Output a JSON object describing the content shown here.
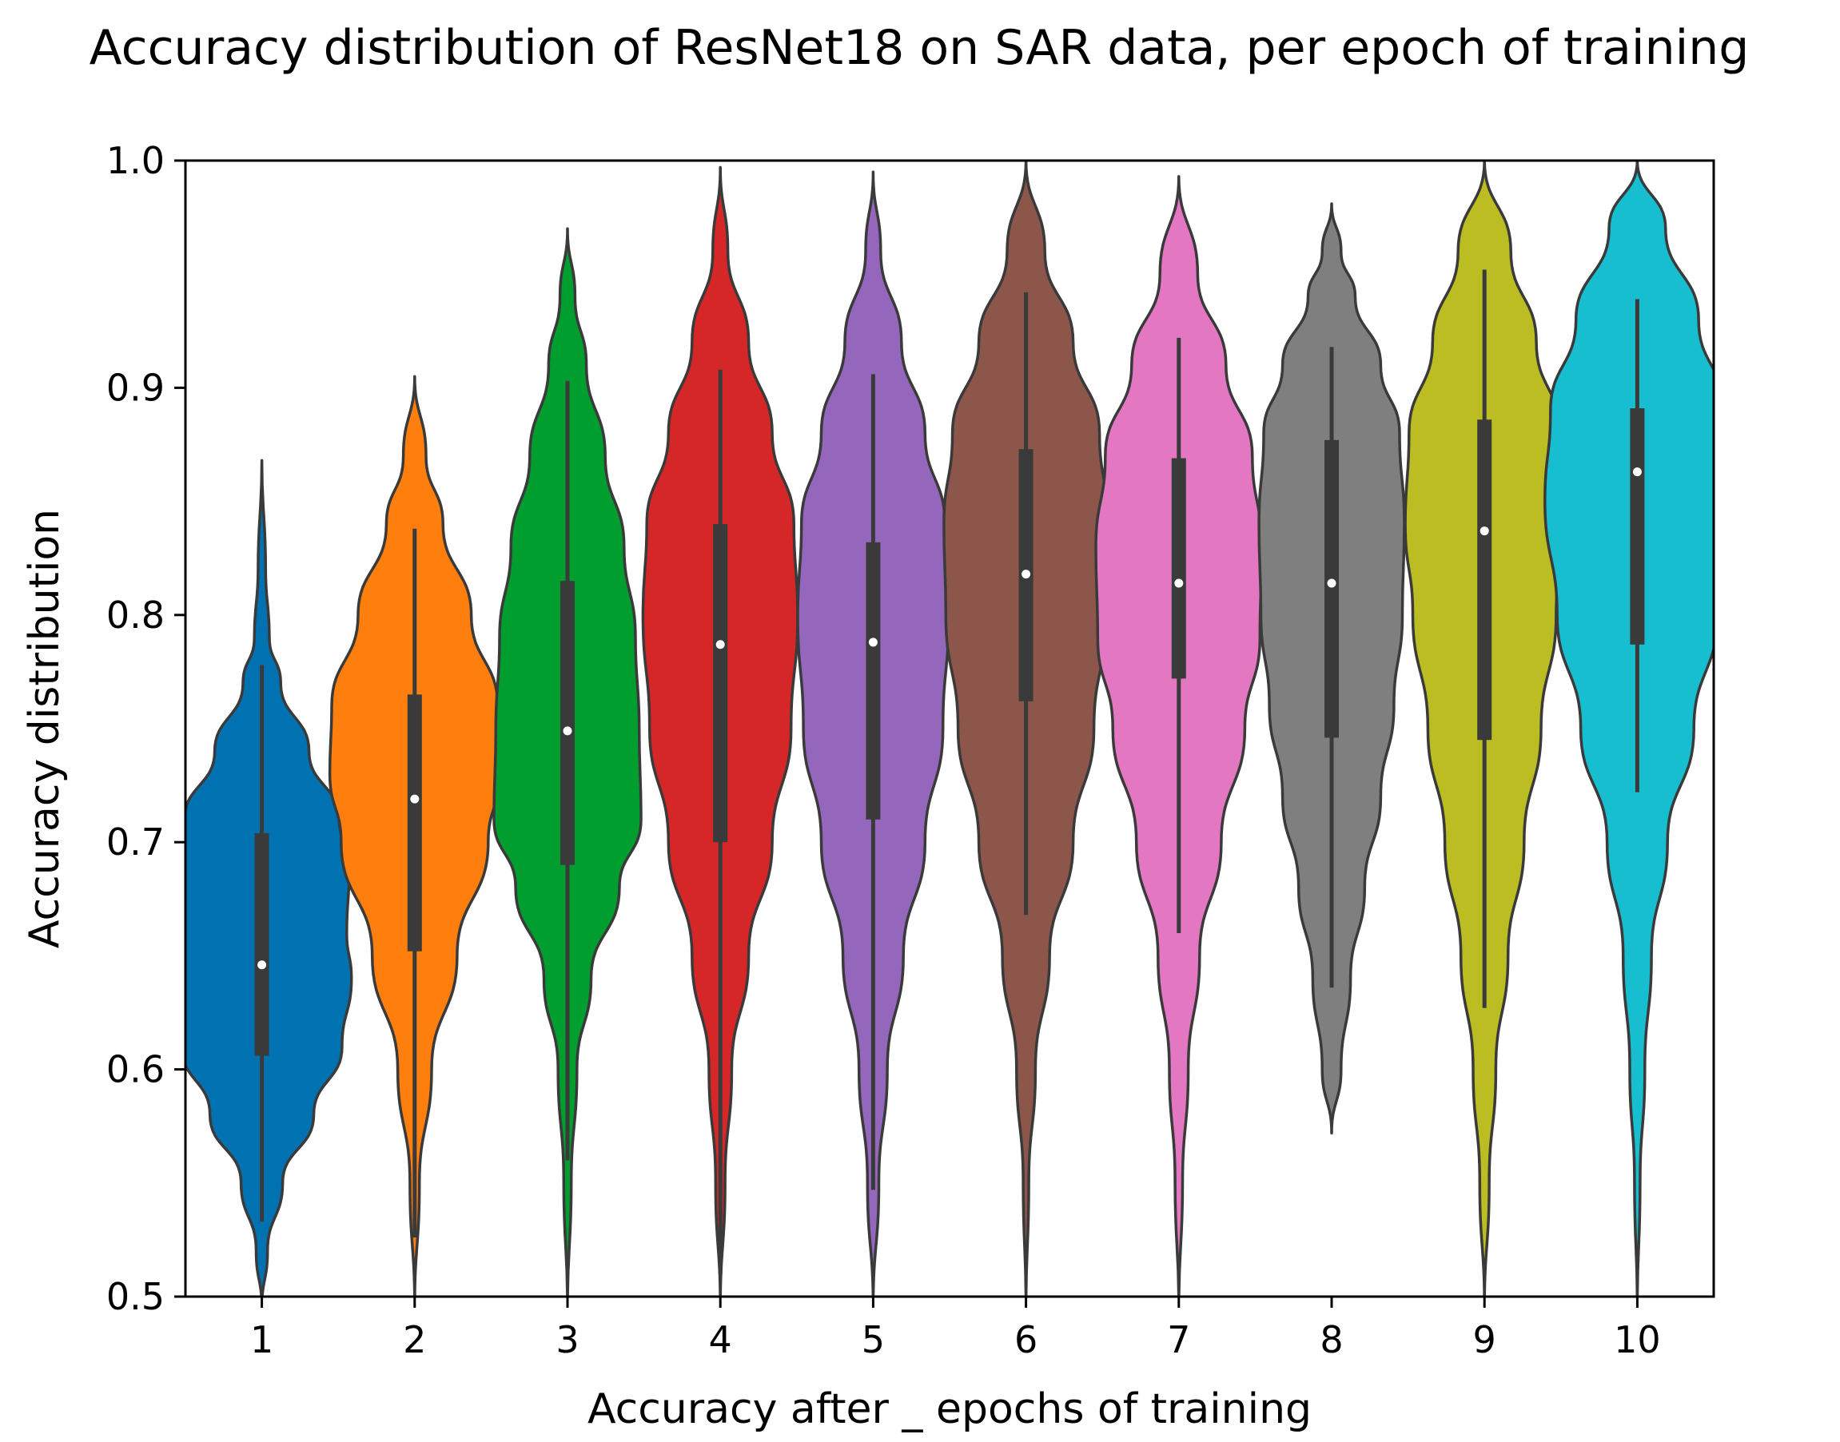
{
  "chart_data": {
    "type": "violin",
    "title": "Accuracy distribution of ResNet18 on SAR data, per epoch of training",
    "xlabel": "Accuracy after _ epochs of training",
    "ylabel": "Accuracy distribution",
    "ylim": [
      0.5,
      1.0
    ],
    "yticks": [
      "0.5",
      "0.6",
      "0.7",
      "0.8",
      "0.9",
      "1.0"
    ],
    "grid": false,
    "categories": [
      "1",
      "2",
      "3",
      "4",
      "5",
      "6",
      "7",
      "8",
      "9",
      "10"
    ],
    "colors": [
      "#0072b2",
      "#ff7f0e",
      "#009e2f",
      "#d62728",
      "#9467bd",
      "#8c564b",
      "#e377c2",
      "#7f7f7f",
      "#bcbd22",
      "#17becf"
    ],
    "outline_color": "#3a3a3a",
    "box_color": "#3a3a3a",
    "median_color": "#ffffff",
    "violins": [
      {
        "label": "1",
        "min": 0.495,
        "max": 0.868,
        "q1": 0.606,
        "median": 0.646,
        "q3": 0.704,
        "whisker_low": 0.533,
        "whisker_high": 0.778,
        "shape": [
          [
            0.495,
            0.0
          ],
          [
            0.52,
            0.06
          ],
          [
            0.55,
            0.22
          ],
          [
            0.58,
            0.55
          ],
          [
            0.61,
            0.85
          ],
          [
            0.64,
            0.95
          ],
          [
            0.66,
            0.9
          ],
          [
            0.69,
            0.93
          ],
          [
            0.71,
            0.82
          ],
          [
            0.74,
            0.5
          ],
          [
            0.77,
            0.2
          ],
          [
            0.79,
            0.08
          ],
          [
            0.82,
            0.04
          ],
          [
            0.868,
            0.0
          ]
        ]
      },
      {
        "label": "2",
        "min": 0.495,
        "max": 0.905,
        "q1": 0.652,
        "median": 0.719,
        "q3": 0.765,
        "whisker_low": 0.526,
        "whisker_high": 0.838,
        "shape": [
          [
            0.495,
            0.0
          ],
          [
            0.55,
            0.05
          ],
          [
            0.6,
            0.18
          ],
          [
            0.65,
            0.45
          ],
          [
            0.7,
            0.78
          ],
          [
            0.73,
            0.9
          ],
          [
            0.76,
            0.88
          ],
          [
            0.8,
            0.6
          ],
          [
            0.84,
            0.3
          ],
          [
            0.87,
            0.12
          ],
          [
            0.905,
            0.0
          ]
        ]
      },
      {
        "label": "3",
        "min": 0.495,
        "max": 0.97,
        "q1": 0.69,
        "median": 0.749,
        "q3": 0.815,
        "whisker_low": 0.56,
        "whisker_high": 0.903,
        "shape": [
          [
            0.495,
            0.0
          ],
          [
            0.55,
            0.04
          ],
          [
            0.6,
            0.1
          ],
          [
            0.64,
            0.25
          ],
          [
            0.68,
            0.55
          ],
          [
            0.71,
            0.78
          ],
          [
            0.75,
            0.76
          ],
          [
            0.79,
            0.72
          ],
          [
            0.83,
            0.6
          ],
          [
            0.87,
            0.4
          ],
          [
            0.91,
            0.2
          ],
          [
            0.94,
            0.08
          ],
          [
            0.97,
            0.0
          ]
        ]
      },
      {
        "label": "4",
        "min": 0.495,
        "max": 0.997,
        "q1": 0.7,
        "median": 0.787,
        "q3": 0.84,
        "whisker_low": 0.51,
        "whisker_high": 0.908,
        "shape": [
          [
            0.495,
            0.0
          ],
          [
            0.55,
            0.05
          ],
          [
            0.6,
            0.12
          ],
          [
            0.65,
            0.3
          ],
          [
            0.7,
            0.55
          ],
          [
            0.75,
            0.75
          ],
          [
            0.8,
            0.82
          ],
          [
            0.84,
            0.78
          ],
          [
            0.88,
            0.55
          ],
          [
            0.92,
            0.3
          ],
          [
            0.96,
            0.08
          ],
          [
            0.997,
            0.0
          ]
        ]
      },
      {
        "label": "5",
        "min": 0.495,
        "max": 0.995,
        "q1": 0.71,
        "median": 0.788,
        "q3": 0.832,
        "whisker_low": 0.547,
        "whisker_high": 0.906,
        "shape": [
          [
            0.495,
            0.0
          ],
          [
            0.55,
            0.06
          ],
          [
            0.6,
            0.15
          ],
          [
            0.65,
            0.32
          ],
          [
            0.7,
            0.55
          ],
          [
            0.75,
            0.74
          ],
          [
            0.8,
            0.8
          ],
          [
            0.84,
            0.76
          ],
          [
            0.88,
            0.55
          ],
          [
            0.92,
            0.3
          ],
          [
            0.96,
            0.08
          ],
          [
            0.995,
            0.0
          ]
        ]
      },
      {
        "label": "6",
        "min": 0.495,
        "max": 1.0,
        "q1": 0.762,
        "median": 0.818,
        "q3": 0.873,
        "whisker_low": 0.668,
        "whisker_high": 0.942,
        "shape": [
          [
            0.495,
            0.0
          ],
          [
            0.55,
            0.03
          ],
          [
            0.6,
            0.1
          ],
          [
            0.65,
            0.25
          ],
          [
            0.7,
            0.5
          ],
          [
            0.75,
            0.72
          ],
          [
            0.8,
            0.85
          ],
          [
            0.84,
            0.87
          ],
          [
            0.88,
            0.78
          ],
          [
            0.92,
            0.5
          ],
          [
            0.96,
            0.2
          ],
          [
            1.0,
            0.0
          ]
        ]
      },
      {
        "label": "7",
        "min": 0.495,
        "max": 0.993,
        "q1": 0.772,
        "median": 0.814,
        "q3": 0.869,
        "whisker_low": 0.66,
        "whisker_high": 0.922,
        "shape": [
          [
            0.495,
            0.0
          ],
          [
            0.55,
            0.04
          ],
          [
            0.6,
            0.1
          ],
          [
            0.65,
            0.22
          ],
          [
            0.7,
            0.45
          ],
          [
            0.75,
            0.7
          ],
          [
            0.79,
            0.86
          ],
          [
            0.83,
            0.88
          ],
          [
            0.87,
            0.78
          ],
          [
            0.91,
            0.5
          ],
          [
            0.95,
            0.2
          ],
          [
            0.993,
            0.0
          ]
        ]
      },
      {
        "label": "8",
        "min": 0.572,
        "max": 0.981,
        "q1": 0.746,
        "median": 0.814,
        "q3": 0.877,
        "whisker_low": 0.636,
        "whisker_high": 0.918,
        "shape": [
          [
            0.572,
            0.0
          ],
          [
            0.6,
            0.1
          ],
          [
            0.64,
            0.2
          ],
          [
            0.68,
            0.35
          ],
          [
            0.72,
            0.52
          ],
          [
            0.76,
            0.66
          ],
          [
            0.8,
            0.75
          ],
          [
            0.84,
            0.77
          ],
          [
            0.88,
            0.72
          ],
          [
            0.91,
            0.52
          ],
          [
            0.94,
            0.25
          ],
          [
            0.96,
            0.1
          ],
          [
            0.981,
            0.0
          ]
        ]
      },
      {
        "label": "9",
        "min": 0.495,
        "max": 1.0,
        "q1": 0.745,
        "median": 0.837,
        "q3": 0.886,
        "whisker_low": 0.627,
        "whisker_high": 0.952,
        "shape": [
          [
            0.495,
            0.0
          ],
          [
            0.55,
            0.05
          ],
          [
            0.6,
            0.12
          ],
          [
            0.65,
            0.25
          ],
          [
            0.7,
            0.42
          ],
          [
            0.75,
            0.6
          ],
          [
            0.8,
            0.76
          ],
          [
            0.84,
            0.84
          ],
          [
            0.88,
            0.8
          ],
          [
            0.92,
            0.55
          ],
          [
            0.96,
            0.28
          ],
          [
            1.0,
            0.0
          ]
        ]
      },
      {
        "label": "10",
        "min": 0.495,
        "max": 1.0,
        "q1": 0.787,
        "median": 0.863,
        "q3": 0.891,
        "whisker_low": 0.722,
        "whisker_high": 0.939,
        "shape": [
          [
            0.495,
            0.0
          ],
          [
            0.55,
            0.03
          ],
          [
            0.6,
            0.08
          ],
          [
            0.65,
            0.15
          ],
          [
            0.7,
            0.32
          ],
          [
            0.75,
            0.6
          ],
          [
            0.8,
            0.85
          ],
          [
            0.85,
            0.98
          ],
          [
            0.89,
            0.92
          ],
          [
            0.93,
            0.65
          ],
          [
            0.97,
            0.3
          ],
          [
            1.0,
            0.0
          ]
        ]
      }
    ]
  }
}
